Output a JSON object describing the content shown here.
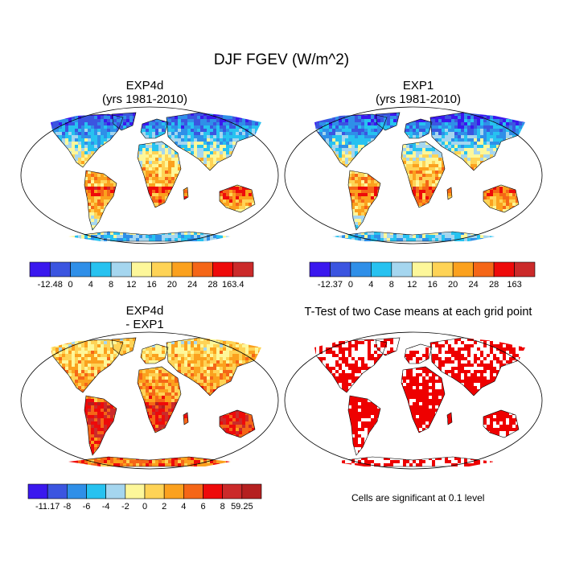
{
  "main_title": "DJF FGEV (W/m^2)",
  "panels": {
    "top_left": {
      "title": "EXP4d",
      "subtitle": "(yrs 1981-2010)"
    },
    "top_right": {
      "title": "EXP1",
      "subtitle": "(yrs 1981-2010)"
    },
    "bottom_left": {
      "title": "EXP4d",
      "subtitle": "- EXP1"
    },
    "bottom_right": {
      "title": "T-Test of two Case means at each grid point"
    }
  },
  "colorbars": {
    "top_left": {
      "labels": [
        "-12.48",
        "0",
        "4",
        "8",
        "12",
        "16",
        "20",
        "24",
        "28",
        "163.4"
      ],
      "colors": [
        "#3a18ee",
        "#3b55e0",
        "#2f8fe8",
        "#27c2f0",
        "#a5d6ef",
        "#fdf79a",
        "#fed356",
        "#fba11e",
        "#f56617",
        "#ee0a0a",
        "#cb2a2a"
      ]
    },
    "top_right": {
      "labels": [
        "-12.37",
        "0",
        "4",
        "8",
        "12",
        "16",
        "20",
        "24",
        "28",
        "163"
      ],
      "colors": [
        "#3a18ee",
        "#3b55e0",
        "#2f8fe8",
        "#27c2f0",
        "#a5d6ef",
        "#fdf79a",
        "#fed356",
        "#fba11e",
        "#f56617",
        "#ee0a0a",
        "#cb2a2a"
      ]
    },
    "bottom_left": {
      "labels": [
        "-11.17",
        "-8",
        "-6",
        "-4",
        "-2",
        "0",
        "2",
        "4",
        "6",
        "8",
        "59.25"
      ],
      "colors": [
        "#3a18ee",
        "#3b55e0",
        "#2f8fe8",
        "#27c2f0",
        "#a5d6ef",
        "#fdf79a",
        "#fed356",
        "#fba11e",
        "#f56617",
        "#ee0a0a",
        "#cb2a2a",
        "#b52020"
      ]
    }
  },
  "significance_note": "Cells are significant at 0.1 level",
  "significance_color": "#ee0000"
}
